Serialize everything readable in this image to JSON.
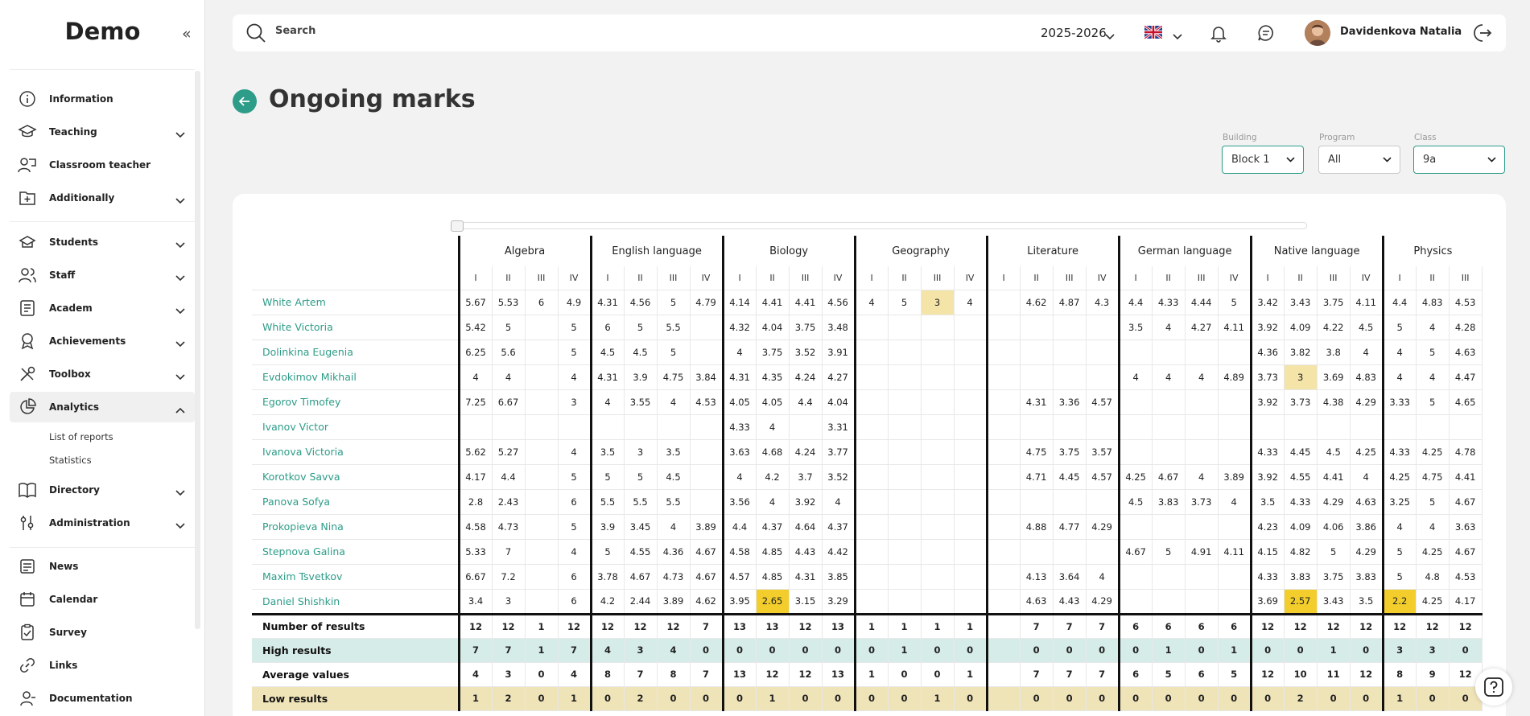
{
  "app": {
    "title": "Demo"
  },
  "sidebar": {
    "items": [
      {
        "label": "Information",
        "icon": "info-icon",
        "expandable": false
      },
      {
        "label": "Teaching",
        "icon": "graduation-cap-icon",
        "expandable": true
      },
      {
        "label": "Classroom teacher",
        "icon": "teacher-icon",
        "expandable": false
      },
      {
        "label": "Additionally",
        "icon": "folder-plus-icon",
        "expandable": true
      },
      {
        "label": "Students",
        "icon": "students-icon",
        "expandable": true
      },
      {
        "label": "Staff",
        "icon": "staff-icon",
        "expandable": true
      },
      {
        "label": "Academ",
        "icon": "academ-icon",
        "expandable": true
      },
      {
        "label": "Achievements",
        "icon": "award-icon",
        "expandable": true
      },
      {
        "label": "Toolbox",
        "icon": "tools-icon",
        "expandable": true
      },
      {
        "label": "Analytics",
        "icon": "pie-chart-icon",
        "expandable": true,
        "expanded": true
      },
      {
        "label": "Directory",
        "icon": "book-icon",
        "expandable": true
      },
      {
        "label": "Administration",
        "icon": "sliders-icon",
        "expandable": true
      },
      {
        "label": "News",
        "icon": "news-icon",
        "expandable": false
      },
      {
        "label": "Calendar",
        "icon": "calendar-icon",
        "expandable": false
      },
      {
        "label": "Survey",
        "icon": "survey-icon",
        "expandable": false
      },
      {
        "label": "Links",
        "icon": "link-icon",
        "expandable": false
      },
      {
        "label": "Documentation",
        "icon": "documentation-icon",
        "expandable": false
      }
    ],
    "analytics_subitems": [
      "List of reports",
      "Statistics"
    ]
  },
  "header": {
    "search_placeholder": "Search",
    "year": "2025-2026",
    "user_name": "Davidenkova Natalia"
  },
  "page": {
    "title": "Ongoing marks"
  },
  "filters": {
    "building_label": "Building",
    "building_value": "Block 1",
    "program_label": "Program",
    "program_value": "All",
    "class_label": "Class",
    "class_value": "9a"
  },
  "table": {
    "subjects": [
      {
        "name": "Algebra",
        "cols": 4
      },
      {
        "name": "English language",
        "cols": 4
      },
      {
        "name": "Biology",
        "cols": 4
      },
      {
        "name": "Geography",
        "cols": 4
      },
      {
        "name": "Literature",
        "cols": 4
      },
      {
        "name": "German language",
        "cols": 4
      },
      {
        "name": "Native language",
        "cols": 4
      },
      {
        "name": "Physics",
        "cols": 3
      }
    ],
    "quarters": [
      "I",
      "II",
      "III",
      "IV"
    ],
    "students": [
      {
        "name": "White Artem",
        "marks": [
          "5.67",
          "5.53",
          "6",
          "4.9",
          "4.31",
          "4.56",
          "5",
          "4.79",
          "4.14",
          "4.41",
          "4.41",
          "4.56",
          "4",
          "5",
          "3",
          "4",
          "",
          "4.62",
          "4.87",
          "4.3",
          "4.4",
          "4.33",
          "4.44",
          "5",
          "3.42",
          "3.43",
          "3.75",
          "4.11",
          "4.4",
          "4.83",
          "4.53"
        ]
      },
      {
        "name": "White Victoria",
        "marks": [
          "5.42",
          "5",
          "",
          "5",
          "6",
          "5",
          "5.5",
          "",
          "4.32",
          "4.04",
          "3.75",
          "3.48",
          "",
          "",
          "",
          "",
          "",
          "",
          "",
          "",
          "3.5",
          "4",
          "4.27",
          "4.11",
          "3.92",
          "4.09",
          "4.22",
          "4.5",
          "5",
          "4",
          "4.28"
        ]
      },
      {
        "name": "Dolinkina Eugenia",
        "marks": [
          "6.25",
          "5.6",
          "",
          "5",
          "4.5",
          "4.5",
          "5",
          "",
          "4",
          "3.75",
          "3.52",
          "3.91",
          "",
          "",
          "",
          "",
          "",
          "",
          "",
          "",
          "",
          "",
          "",
          "",
          "4.36",
          "3.82",
          "3.8",
          "4",
          "4",
          "5",
          "4.63"
        ]
      },
      {
        "name": "Evdokimov Mikhail",
        "marks": [
          "4",
          "4",
          "",
          "4",
          "4.31",
          "3.9",
          "4.75",
          "3.84",
          "4.31",
          "4.35",
          "4.24",
          "4.27",
          "",
          "",
          "",
          "",
          "",
          "",
          "",
          "",
          "4",
          "4",
          "4",
          "4.89",
          "3.73",
          "3",
          "3.69",
          "4.83",
          "4",
          "4",
          "4.47"
        ]
      },
      {
        "name": "Egorov Timofey",
        "marks": [
          "7.25",
          "6.67",
          "",
          "3",
          "4",
          "3.55",
          "4",
          "4.53",
          "4.05",
          "4.05",
          "4.4",
          "4.04",
          "",
          "",
          "",
          "",
          "",
          "4.31",
          "3.36",
          "4.57",
          "",
          "",
          "",
          "",
          "3.92",
          "3.73",
          "4.38",
          "4.29",
          "3.33",
          "5",
          "4.65"
        ]
      },
      {
        "name": "Ivanov Victor",
        "marks": [
          "",
          "",
          "",
          "",
          "",
          "",
          "",
          "",
          "4.33",
          "4",
          "",
          "3.31",
          "",
          "",
          "",
          "",
          "",
          "",
          "",
          "",
          "",
          "",
          "",
          "",
          "",
          "",
          "",
          "",
          "",
          "",
          ""
        ]
      },
      {
        "name": "Ivanova Victoria",
        "marks": [
          "5.62",
          "5.27",
          "",
          "4",
          "3.5",
          "3",
          "3.5",
          "",
          "3.63",
          "4.68",
          "4.24",
          "3.77",
          "",
          "",
          "",
          "",
          "",
          "4.75",
          "3.75",
          "3.57",
          "",
          "",
          "",
          "",
          "4.33",
          "4.45",
          "4.5",
          "4.25",
          "4.33",
          "4.25",
          "4.78"
        ]
      },
      {
        "name": "Korotkov Savva",
        "marks": [
          "4.17",
          "4.4",
          "",
          "5",
          "5",
          "5",
          "4.5",
          "",
          "4",
          "4.2",
          "3.7",
          "3.52",
          "",
          "",
          "",
          "",
          "",
          "4.71",
          "4.45",
          "4.57",
          "4.25",
          "4.67",
          "4",
          "3.89",
          "3.92",
          "4.55",
          "4.41",
          "4",
          "4.25",
          "4.75",
          "4.41"
        ]
      },
      {
        "name": "Panova Sofya",
        "marks": [
          "2.8",
          "2.43",
          "",
          "6",
          "5.5",
          "5.5",
          "5.5",
          "",
          "3.56",
          "4",
          "3.92",
          "4",
          "",
          "",
          "",
          "",
          "",
          "",
          "",
          "",
          "4.5",
          "3.83",
          "3.73",
          "4",
          "3.5",
          "4.33",
          "4.29",
          "4.63",
          "3.25",
          "5",
          "4.67"
        ]
      },
      {
        "name": "Prokopieva Nina",
        "marks": [
          "4.58",
          "4.73",
          "",
          "5",
          "3.9",
          "3.45",
          "4",
          "3.89",
          "4.4",
          "4.37",
          "4.64",
          "4.37",
          "",
          "",
          "",
          "",
          "",
          "4.88",
          "4.77",
          "4.29",
          "",
          "",
          "",
          "",
          "4.23",
          "4.09",
          "4.06",
          "3.86",
          "4",
          "4",
          "3.63"
        ]
      },
      {
        "name": "Stepnova Galina",
        "marks": [
          "5.33",
          "7",
          "",
          "4",
          "5",
          "4.55",
          "4.36",
          "4.67",
          "4.58",
          "4.85",
          "4.43",
          "4.42",
          "",
          "",
          "",
          "",
          "",
          "",
          "",
          "",
          "4.67",
          "5",
          "4.91",
          "4.11",
          "4.15",
          "4.82",
          "5",
          "4.29",
          "5",
          "4.25",
          "4.67"
        ]
      },
      {
        "name": "Maxim Tsvetkov",
        "marks": [
          "6.67",
          "7.2",
          "",
          "6",
          "3.78",
          "4.67",
          "4.73",
          "4.67",
          "4.57",
          "4.85",
          "4.31",
          "3.85",
          "",
          "",
          "",
          "",
          "",
          "4.13",
          "3.64",
          "4",
          "",
          "",
          "",
          "",
          "4.33",
          "3.83",
          "3.75",
          "3.83",
          "5",
          "4.8",
          "4.53"
        ]
      },
      {
        "name": "Daniel Shishkin",
        "marks": [
          "3.4",
          "3",
          "",
          "6",
          "4.2",
          "2.44",
          "3.89",
          "4.62",
          "3.95",
          "2.65",
          "3.15",
          "3.29",
          "",
          "",
          "",
          "",
          "",
          "4.63",
          "4.43",
          "4.29",
          "",
          "",
          "",
          "",
          "3.69",
          "2.57",
          "3.43",
          "3.5",
          "2.2",
          "4.25",
          "4.17"
        ]
      }
    ],
    "summary": [
      {
        "label": "Number of results",
        "values": [
          "12",
          "12",
          "1",
          "12",
          "12",
          "12",
          "12",
          "7",
          "13",
          "13",
          "12",
          "13",
          "1",
          "1",
          "1",
          "1",
          "",
          "7",
          "7",
          "7",
          "6",
          "6",
          "6",
          "6",
          "12",
          "12",
          "12",
          "12",
          "12",
          "12",
          "12"
        ]
      },
      {
        "label": "High results",
        "values": [
          "7",
          "7",
          "1",
          "7",
          "4",
          "3",
          "4",
          "0",
          "0",
          "0",
          "0",
          "0",
          "0",
          "1",
          "0",
          "0",
          "",
          "0",
          "0",
          "0",
          "0",
          "1",
          "0",
          "1",
          "0",
          "0",
          "1",
          "0",
          "3",
          "3",
          "0"
        ]
      },
      {
        "label": "Average values",
        "values": [
          "4",
          "3",
          "0",
          "4",
          "8",
          "7",
          "8",
          "7",
          "13",
          "12",
          "12",
          "13",
          "1",
          "0",
          "0",
          "1",
          "",
          "7",
          "7",
          "7",
          "6",
          "5",
          "6",
          "5",
          "12",
          "10",
          "11",
          "12",
          "8",
          "9",
          "12"
        ]
      },
      {
        "label": "Low results",
        "values": [
          "1",
          "2",
          "0",
          "1",
          "0",
          "2",
          "0",
          "0",
          "0",
          "1",
          "0",
          "0",
          "0",
          "0",
          "1",
          "0",
          "",
          "0",
          "0",
          "0",
          "0",
          "0",
          "0",
          "0",
          "0",
          "2",
          "0",
          "0",
          "1",
          "0",
          "0"
        ]
      }
    ],
    "highlights": [
      {
        "row": 0,
        "col": 14,
        "level": "light"
      },
      {
        "row": 3,
        "col": 25,
        "level": "light"
      },
      {
        "row": 12,
        "col": 9,
        "level": "strong"
      },
      {
        "row": 12,
        "col": 25,
        "level": "strong"
      },
      {
        "row": 12,
        "col": 28,
        "level": "strong"
      }
    ]
  },
  "colors": {
    "accent": "#2d9c88",
    "high_row": "#d6ece8",
    "low_row": "#efe3b8",
    "mark_light": "#f4e4a8",
    "mark_strong": "#f2cd2c"
  }
}
